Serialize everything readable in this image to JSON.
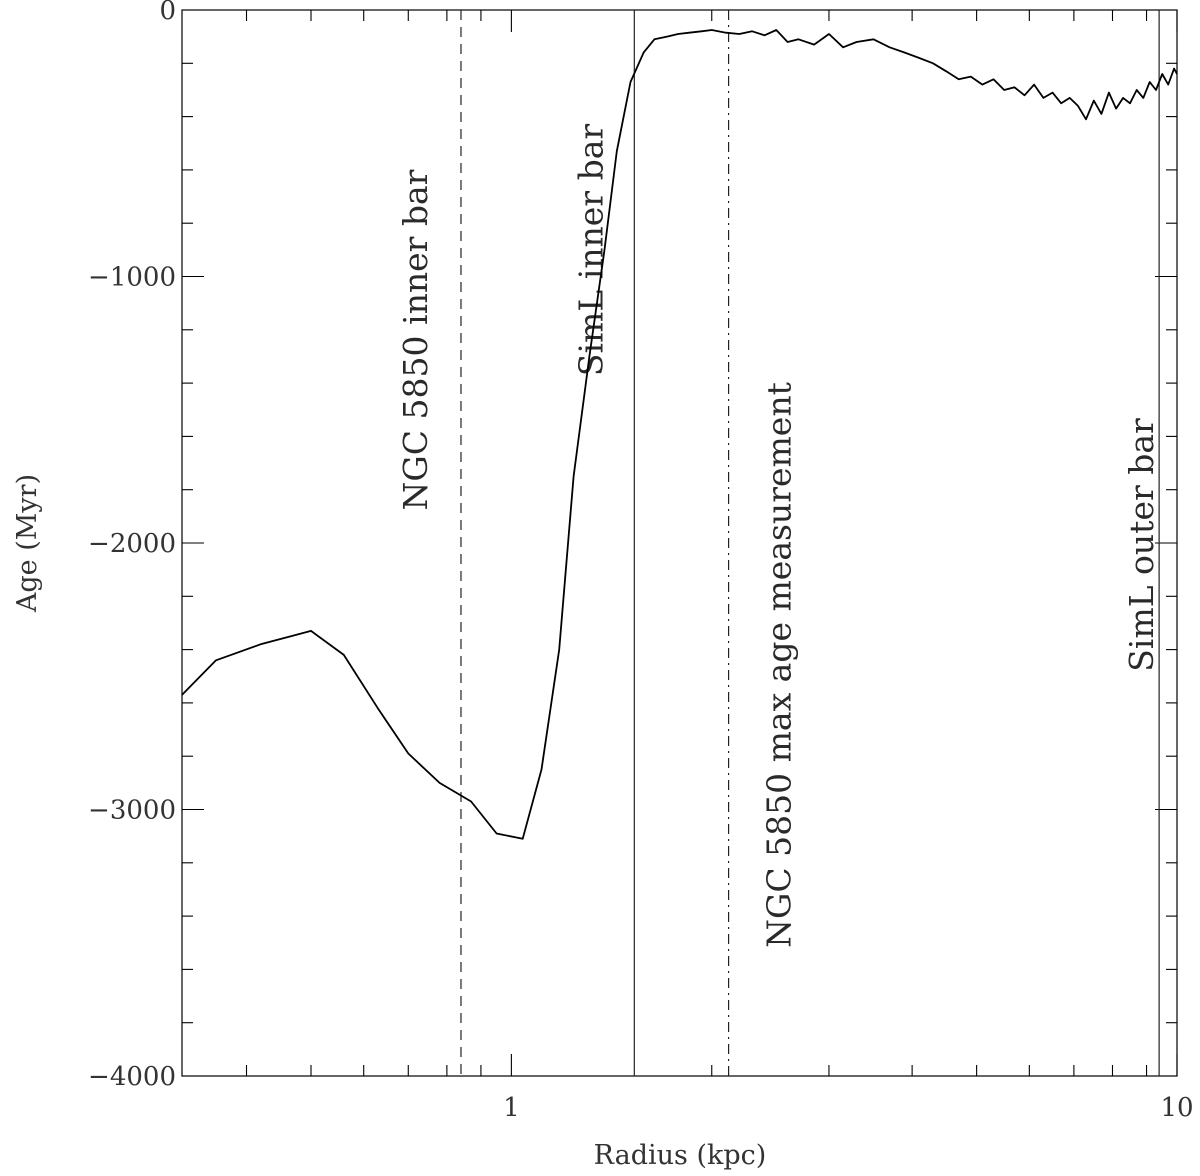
{
  "chart_data": {
    "type": "line",
    "title": "",
    "xlabel": "Radius (kpc)",
    "ylabel": "Age (Myr)",
    "xscale": "log",
    "xlim": [
      0.32,
      10.0
    ],
    "ylim": [
      -4000,
      0
    ],
    "x_tick_labels": [
      {
        "value": 1,
        "label": "1"
      },
      {
        "value": 10,
        "label": "10"
      }
    ],
    "y_tick_labels": [
      {
        "value": 0,
        "label": "0"
      },
      {
        "value": -1000,
        "label": "−1000"
      },
      {
        "value": -2000,
        "label": "−2000"
      },
      {
        "value": -3000,
        "label": "−3000"
      },
      {
        "value": -4000,
        "label": "−4000"
      }
    ],
    "grid": false,
    "series": [
      {
        "x": [
          0.32,
          0.36,
          0.42,
          0.5,
          0.56,
          0.63,
          0.7,
          0.78,
          0.87,
          0.95,
          1.04,
          1.11,
          1.18,
          1.24,
          1.31,
          1.38,
          1.44,
          1.51,
          1.58,
          1.64,
          1.71,
          1.78,
          1.85,
          1.93,
          2.0,
          2.1,
          2.2,
          2.3,
          2.4,
          2.5,
          2.6,
          2.7,
          2.85,
          3.0,
          3.15,
          3.3,
          3.5,
          3.7,
          3.9,
          4.1,
          4.3,
          4.5,
          4.7,
          4.9,
          5.1,
          5.3,
          5.5,
          5.7,
          5.9,
          6.1,
          6.3,
          6.5,
          6.7,
          6.9,
          7.1,
          7.3,
          7.5,
          7.7,
          7.9,
          8.1,
          8.3,
          8.5,
          8.7,
          8.9,
          9.1,
          9.3,
          9.5,
          9.7,
          9.9,
          10.0
        ],
        "y": [
          -2570,
          -2440,
          -2380,
          -2330,
          -2420,
          -2620,
          -2790,
          -2900,
          -2970,
          -3090,
          -3110,
          -2850,
          -2400,
          -1750,
          -1300,
          -900,
          -530,
          -270,
          -160,
          -110,
          -100,
          -90,
          -85,
          -80,
          -75,
          -85,
          -90,
          -80,
          -95,
          -75,
          -120,
          -110,
          -130,
          -90,
          -140,
          -120,
          -110,
          -140,
          -160,
          -180,
          -200,
          -230,
          -260,
          -250,
          -280,
          -260,
          -300,
          -290,
          -320,
          -280,
          -330,
          -310,
          -350,
          -330,
          -360,
          -410,
          -340,
          -390,
          -310,
          -370,
          -330,
          -350,
          -300,
          -330,
          -270,
          -300,
          -240,
          -280,
          -220,
          -240
        ]
      }
    ],
    "reference_lines": [
      {
        "x": 0.84,
        "style": "dashed",
        "label": "NGC 5850 inner bar"
      },
      {
        "x": 1.53,
        "style": "solid",
        "label": "SimL inner bar"
      },
      {
        "x": 2.12,
        "style": "dashdot",
        "label": "NGC 5850 max age measurement"
      },
      {
        "x": 9.4,
        "style": "solid",
        "label": "SimL outer bar"
      }
    ]
  }
}
